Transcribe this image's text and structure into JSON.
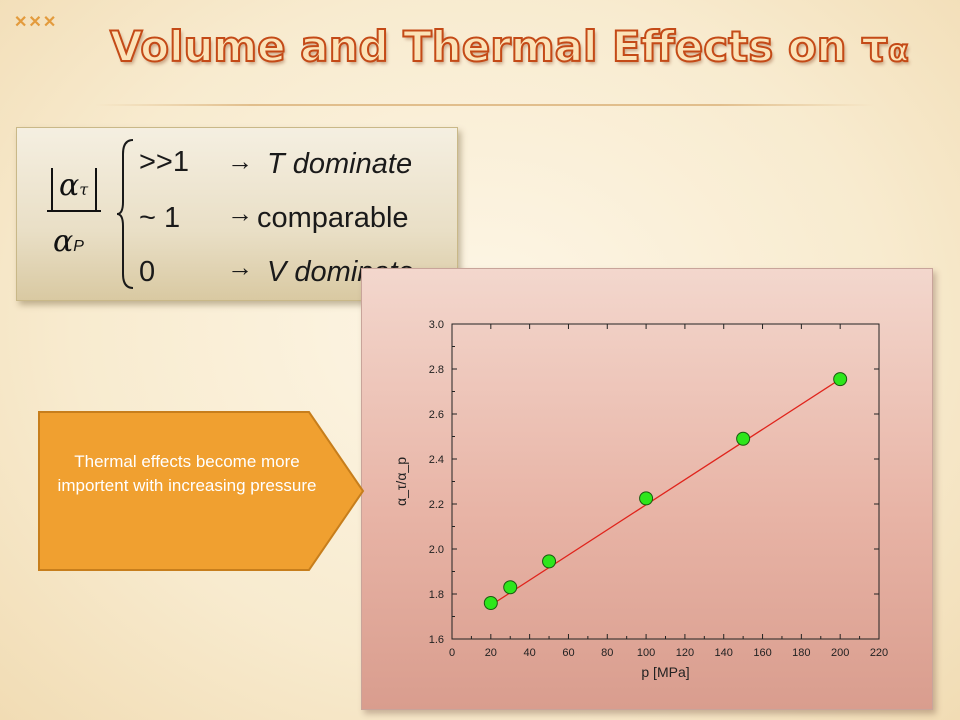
{
  "slide": {
    "title": "Volume and Thermal Effects on τ",
    "title_subscript": "α"
  },
  "formula": {
    "numerator_symbol": "α",
    "numerator_subscript": "τ",
    "denominator_symbol": "α",
    "denominator_subscript": "P",
    "arrow": "→",
    "cases": [
      {
        "condition": ">>1",
        "result": "T dominate",
        "italic": true
      },
      {
        "condition": "~ 1",
        "result": "comparable",
        "italic": false
      },
      {
        "condition": "0",
        "result": "V dominate",
        "italic": true
      }
    ]
  },
  "callout": {
    "text": "Thermal effects become more importent with increasing pressure",
    "color": "#f0a030",
    "border_color": "#c77e1c"
  },
  "chart_data": {
    "type": "scatter",
    "xlabel": "p [MPa]",
    "ylabel": "α_τ/α_p",
    "xlim": [
      0,
      220
    ],
    "ylim": [
      1.6,
      3.0
    ],
    "xticks": [
      0,
      20,
      40,
      60,
      80,
      100,
      120,
      140,
      160,
      180,
      200,
      220
    ],
    "yticks": [
      1.6,
      1.8,
      2.0,
      2.2,
      2.4,
      2.6,
      2.8,
      3.0
    ],
    "x": [
      20,
      30,
      50,
      100,
      150,
      200
    ],
    "y": [
      1.76,
      1.83,
      1.945,
      2.225,
      2.49,
      2.755
    ],
    "fit_line": {
      "x": [
        20,
        200
      ],
      "y": [
        1.75,
        2.755
      ]
    },
    "point_color": "#2ee61c",
    "line_color": "#e0241c",
    "grid": false
  }
}
